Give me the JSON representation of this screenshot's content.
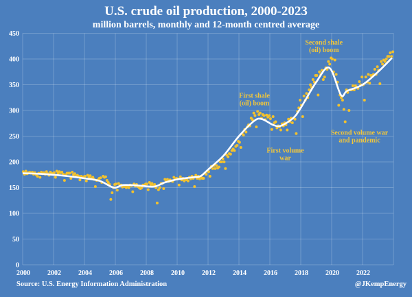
{
  "chart_data": {
    "type": "scatter+line",
    "title": "U.S. crude oil production, 2000-2023",
    "subtitle": "million barrels, monthly and 12-month centred average",
    "xlabel": "",
    "ylabel": "",
    "xlim": [
      2000,
      2024
    ],
    "ylim": [
      0,
      450
    ],
    "yticks": [
      "0",
      "50",
      "100",
      "150",
      "200",
      "250",
      "300",
      "350",
      "400",
      "450"
    ],
    "xticks": [
      "2000",
      "2002",
      "2004",
      "2006",
      "2008",
      "2010",
      "2012",
      "2014",
      "2016",
      "2018",
      "2020",
      "2022"
    ],
    "grid": true,
    "colors": {
      "monthly": "#f2c12e",
      "average": "#ffffff",
      "annotation": "#f0c63c"
    },
    "series": [
      {
        "name": "Monthly",
        "start_year": 2000,
        "values_by_year": [
          [
            181,
            176,
            182,
            177,
            179,
            180,
            178,
            180,
            176,
            179,
            175,
            172
          ],
          [
            178,
            170,
            180,
            177,
            179,
            176,
            181,
            177,
            174,
            180,
            178,
            176
          ],
          [
            179,
            170,
            182,
            178,
            181,
            179,
            180,
            176,
            164,
            175,
            178,
            178
          ],
          [
            178,
            168,
            180,
            175,
            177,
            172,
            174,
            172,
            165,
            172,
            170,
            171
          ],
          [
            172,
            163,
            174,
            170,
            173,
            168,
            170,
            166,
            152,
            164,
            165,
            168
          ],
          [
            169,
            160,
            172,
            170,
            171,
            164,
            160,
            156,
            127,
            140,
            150,
            156
          ],
          [
            157,
            145,
            158,
            154,
            155,
            151,
            153,
            152,
            150,
            153,
            150,
            155
          ],
          [
            154,
            142,
            157,
            153,
            156,
            152,
            150,
            148,
            150,
            155,
            154,
            157
          ],
          [
            157,
            146,
            160,
            156,
            158,
            154,
            156,
            150,
            120,
            146,
            150,
            158
          ],
          [
            158,
            148,
            166,
            162,
            166,
            162,
            165,
            163,
            162,
            170,
            167,
            168
          ],
          [
            167,
            155,
            171,
            165,
            168,
            163,
            166,
            165,
            163,
            170,
            167,
            172
          ],
          [
            168,
            152,
            174,
            168,
            172,
            167,
            172,
            168,
            168,
            178,
            176,
            182
          ],
          [
            181,
            172,
            191,
            187,
            193,
            187,
            193,
            188,
            190,
            200,
            200,
            206
          ],
          [
            200,
            187,
            213,
            210,
            216,
            215,
            222,
            225,
            222,
            230,
            232,
            240
          ],
          [
            238,
            228,
            255,
            252,
            263,
            258,
            268,
            272,
            270,
            285,
            282,
            295
          ],
          [
            290,
            268,
            298,
            292,
            295,
            285,
            292,
            290,
            282,
            291,
            287,
            290
          ],
          [
            284,
            263,
            288,
            276,
            278,
            266,
            270,
            268,
            262,
            274,
            270,
            276
          ],
          [
            272,
            262,
            283,
            278,
            285,
            276,
            285,
            283,
            255,
            298,
            305,
            320
          ],
          [
            310,
            288,
            328,
            320,
            333,
            325,
            340,
            350,
            345,
            360,
            355,
            368
          ],
          [
            368,
            330,
            375,
            370,
            378,
            360,
            365,
            383,
            380,
            395,
            390,
            402
          ],
          [
            400,
            375,
            398,
            370,
            355,
            310,
            330,
            325,
            320,
            302,
            278,
            340
          ],
          [
            335,
            300,
            340,
            340,
            348,
            340,
            348,
            345,
            343,
            356,
            350,
            365
          ],
          [
            350,
            320,
            365,
            355,
            370,
            353,
            368,
            368,
            370,
            380,
            370,
            385
          ],
          [
            378,
            352,
            395,
            390,
            398,
            395,
            400,
            405,
            405,
            412,
            405,
            414
          ]
        ]
      },
      {
        "name": "12-month centred average",
        "points": [
          [
            2000,
            178
          ],
          [
            2001,
            177
          ],
          [
            2002,
            175
          ],
          [
            2003,
            172
          ],
          [
            2004,
            168
          ],
          [
            2005,
            163
          ],
          [
            2005.9,
            150
          ],
          [
            2006.5,
            155
          ],
          [
            2007.5,
            154
          ],
          [
            2008.5,
            152
          ],
          [
            2009.2,
            160
          ],
          [
            2010,
            166
          ],
          [
            2011,
            170
          ],
          [
            2011.5,
            172
          ],
          [
            2012,
            185
          ],
          [
            2013,
            212
          ],
          [
            2014,
            250
          ],
          [
            2015,
            280
          ],
          [
            2015.5,
            283
          ],
          [
            2016.2,
            272
          ],
          [
            2016.7,
            270
          ],
          [
            2017.5,
            285
          ],
          [
            2018,
            305
          ],
          [
            2019,
            355
          ],
          [
            2019.85,
            383
          ],
          [
            2020.6,
            330
          ],
          [
            2021,
            338
          ],
          [
            2022,
            350
          ],
          [
            2023,
            375
          ],
          [
            2023.9,
            402
          ]
        ]
      }
    ],
    "annotations": [
      {
        "lines": [
          "First shale",
          "(oil) boom"
        ],
        "at": [
          2015,
          325
        ]
      },
      {
        "lines": [
          "First volume",
          "war"
        ],
        "at": [
          2017,
          218
        ]
      },
      {
        "lines": [
          "Second shale",
          "(oil) boom"
        ],
        "at": [
          2019.5,
          428
        ]
      },
      {
        "lines": [
          "Second volume war",
          "and pandemic"
        ],
        "at": [
          2021.8,
          253
        ]
      }
    ]
  },
  "footer": {
    "source": "Source: U.S. Energy Information Administration",
    "credit": "@JKempEnergy"
  }
}
